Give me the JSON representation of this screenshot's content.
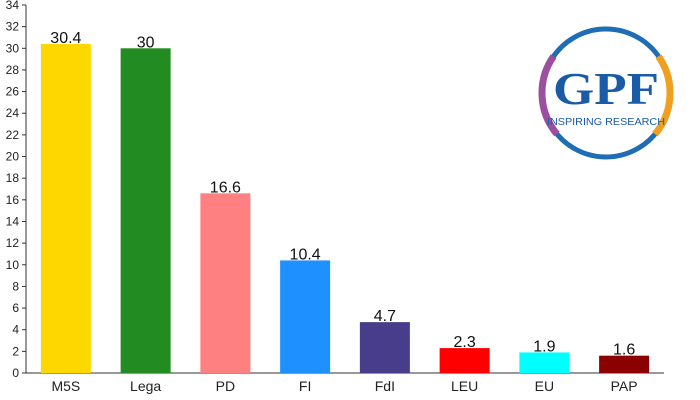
{
  "chart_data": {
    "type": "bar",
    "categories": [
      "M5S",
      "Lega",
      "PD",
      "FI",
      "FdI",
      "LEU",
      "EU",
      "PAP"
    ],
    "values": [
      30.4,
      30,
      16.6,
      10.4,
      4.7,
      2.3,
      1.9,
      1.6
    ],
    "value_labels": [
      "30.4",
      "30",
      "16.6",
      "10.4",
      "4.7",
      "2.3",
      "1.9",
      "1.6"
    ],
    "colors": [
      "#FFD700",
      "#228B22",
      "#FF8080",
      "#1E90FF",
      "#483D8B",
      "#FF0000",
      "#00FFFF",
      "#8B0000"
    ],
    "ylim": [
      0,
      34
    ],
    "yticks": [
      0,
      2,
      4,
      6,
      8,
      10,
      12,
      14,
      16,
      18,
      20,
      22,
      24,
      26,
      28,
      30,
      32,
      34
    ],
    "grid": false,
    "legend": "none",
    "title": "",
    "xlabel": "",
    "ylabel": ""
  },
  "logo": {
    "main": "GPF",
    "tagline": "INSPIRING RESEARCH",
    "colors": {
      "ring_blue": "#1E6DB5",
      "ring_purple": "#9B4F9E",
      "ring_orange": "#F0A020",
      "text_blue": "#1A5BA8"
    }
  }
}
